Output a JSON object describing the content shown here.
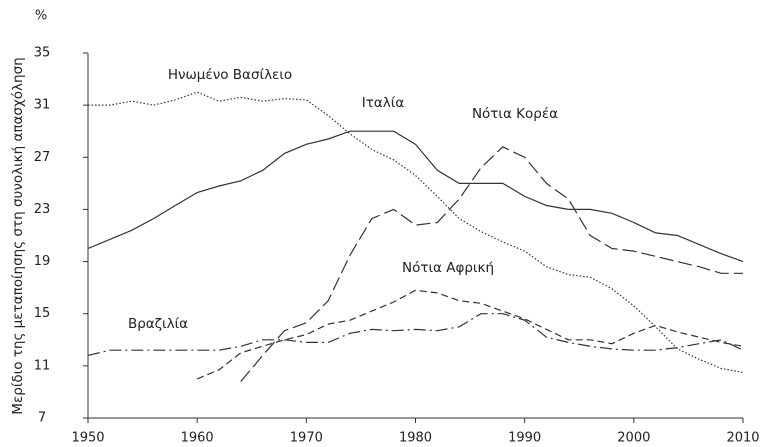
{
  "chart_data": {
    "type": "line",
    "y_unit": "%",
    "y_label": "Μερίδιο της μεταποίησης στη συνολική απασχόληση",
    "x": [
      1950,
      1952,
      1954,
      1956,
      1958,
      1960,
      1962,
      1964,
      1966,
      1968,
      1970,
      1972,
      1974,
      1976,
      1978,
      1980,
      1982,
      1984,
      1986,
      1988,
      1990,
      1992,
      1994,
      1996,
      1998,
      2000,
      2002,
      2004,
      2006,
      2008,
      2010
    ],
    "xlim": [
      1950,
      2010
    ],
    "xticks": [
      1950,
      1960,
      1970,
      1980,
      1990,
      2000,
      2010
    ],
    "ylim": [
      7,
      35
    ],
    "yticks": [
      7,
      11,
      15,
      19,
      23,
      27,
      31,
      35
    ],
    "series": [
      {
        "name": "Ηνωμένο Βασίλειο",
        "color": "#333333",
        "line_style": "dotted",
        "values": [
          31,
          31,
          31.3,
          31,
          31.4,
          32,
          31.3,
          31.6,
          31.3,
          31.5,
          31.4,
          30.2,
          28.8,
          27.6,
          26.8,
          25.6,
          24,
          22.3,
          21.3,
          20.5,
          19.8,
          18.6,
          18,
          17.8,
          16.9,
          15.6,
          14,
          12.3,
          11.5,
          10.8,
          10.5
        ]
      },
      {
        "name": "Ιταλία",
        "color": "#333333",
        "line_style": "solid",
        "values": [
          20,
          20.7,
          21.4,
          22.3,
          23.3,
          24.3,
          24.8,
          25.2,
          26,
          27.3,
          28,
          28.4,
          29,
          29,
          29,
          28,
          26,
          25,
          25,
          25,
          24,
          23.3,
          23,
          23,
          22.7,
          22,
          21.2,
          21,
          20.3,
          19.6,
          19
        ]
      },
      {
        "name": "Νότια Κορέα",
        "color": "#333333",
        "line_style": "longdash",
        "values": [
          null,
          null,
          null,
          null,
          null,
          null,
          null,
          9.8,
          11.8,
          13.7,
          14.3,
          16,
          19.5,
          22.3,
          23,
          21.8,
          22,
          23.8,
          26.2,
          27.8,
          27,
          25,
          23.8,
          21,
          20,
          19.8,
          19.4,
          19,
          18.6,
          18.1,
          18.1
        ]
      },
      {
        "name": "Νότια Αφρική",
        "color": "#333333",
        "line_style": "dash",
        "values": [
          null,
          null,
          null,
          null,
          null,
          10,
          10.7,
          12,
          12.5,
          13,
          13.4,
          14.2,
          14.5,
          15.2,
          15.9,
          16.8,
          16.6,
          16,
          15.8,
          15.2,
          14.6,
          13.8,
          13,
          13,
          12.7,
          13.5,
          14.1,
          13.6,
          13.2,
          12.8,
          12.5
        ]
      },
      {
        "name": "Βραζιλία",
        "color": "#333333",
        "line_style": "dashdot",
        "values": [
          11.8,
          12.2,
          12.2,
          12.2,
          12.2,
          12.2,
          12.2,
          12.5,
          13,
          13,
          12.8,
          12.8,
          13.5,
          13.8,
          13.7,
          13.8,
          13.7,
          14,
          15,
          15,
          14.5,
          13.2,
          12.8,
          12.5,
          12.3,
          12.2,
          12.2,
          12.4,
          12.7,
          13,
          12.2
        ]
      }
    ]
  }
}
